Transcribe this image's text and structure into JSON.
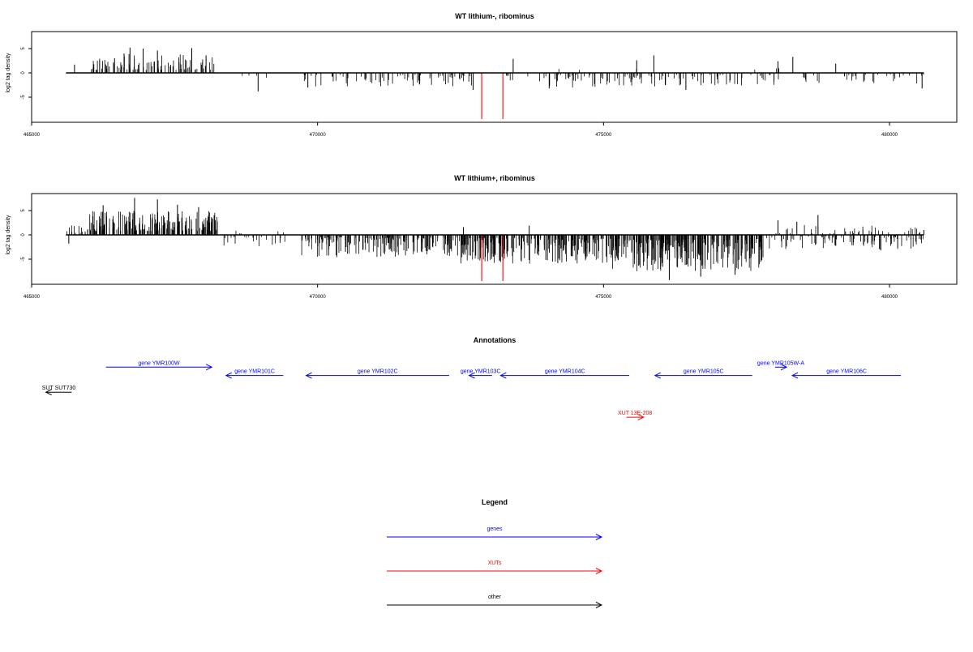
{
  "chart_data": [
    {
      "type": "bar",
      "title": "WT lithium-, ribominus",
      "ylabel": "log2 tag density",
      "xlabel": "",
      "xlim": [
        465000,
        481200
      ],
      "ylim": [
        -10,
        8.5
      ],
      "x_ticks": [
        465000,
        470000,
        475000,
        480000
      ],
      "y_ticks": [
        5,
        0,
        -5
      ],
      "baseline_x": [
        465600,
        480600
      ],
      "highlight_color": "#ff0000",
      "bar_color": "#000000",
      "tall_bars": [
        {
          "x": 465750,
          "y": 1.7
        },
        {
          "x": 466450,
          "y": 3.0
        },
        {
          "x": 466720,
          "y": 5.2
        },
        {
          "x": 466950,
          "y": 5.0
        },
        {
          "x": 467200,
          "y": 4.6
        },
        {
          "x": 467800,
          "y": 5.1
        },
        {
          "x": 468050,
          "y": 3.6
        },
        {
          "x": 468960,
          "y": -3.8
        },
        {
          "x": 469830,
          "y": -3.0
        },
        {
          "x": 472720,
          "y": -3.5
        },
        {
          "x": 473420,
          "y": 2.9
        },
        {
          "x": 474050,
          "y": -3.2
        },
        {
          "x": 475580,
          "y": 2.6
        },
        {
          "x": 475880,
          "y": 3.6
        },
        {
          "x": 476440,
          "y": -3.5
        },
        {
          "x": 478050,
          "y": 2.4
        },
        {
          "x": 478310,
          "y": 3.3
        },
        {
          "x": 479060,
          "y": 1.9
        },
        {
          "x": 480570,
          "y": -3.2
        }
      ],
      "highlight_bars": [
        {
          "x": 472870,
          "y": -9.5
        },
        {
          "x": 473240,
          "y": -9.5
        }
      ],
      "density_regions": [
        {
          "start": 466000,
          "end": 468200,
          "sign": 1,
          "count": 95,
          "min": 0.6,
          "max": 4.0
        },
        {
          "start": 468500,
          "end": 469400,
          "sign": -1,
          "count": 4,
          "min": 0.5,
          "max": 1.5
        },
        {
          "start": 469700,
          "end": 472700,
          "sign": -1,
          "count": 70,
          "min": 0.4,
          "max": 2.8
        },
        {
          "start": 473300,
          "end": 476200,
          "sign": -1,
          "count": 75,
          "min": 0.4,
          "max": 3.0
        },
        {
          "start": 476200,
          "end": 478000,
          "sign": -1,
          "count": 40,
          "min": 0.4,
          "max": 2.6
        },
        {
          "start": 478000,
          "end": 480600,
          "sign": -1,
          "count": 35,
          "min": 0.3,
          "max": 2.2
        },
        {
          "start": 473400,
          "end": 479500,
          "sign": 1,
          "count": 6,
          "min": 0.3,
          "max": 1.0
        }
      ]
    },
    {
      "type": "bar",
      "title": "WT lithium+, ribominus",
      "ylabel": "log2 tag density",
      "xlabel": "",
      "xlim": [
        465000,
        481200
      ],
      "ylim": [
        -10,
        8.5
      ],
      "x_ticks": [
        465000,
        470000,
        475000,
        480000
      ],
      "y_ticks": [
        5,
        0,
        -5
      ],
      "baseline_x": [
        465600,
        480600
      ],
      "highlight_color": "#ff0000",
      "bar_color": "#000000",
      "tall_bars": [
        {
          "x": 466250,
          "y": 6.1
        },
        {
          "x": 466800,
          "y": 7.6
        },
        {
          "x": 467200,
          "y": 7.3
        },
        {
          "x": 467550,
          "y": 6.2
        },
        {
          "x": 467920,
          "y": 5.7
        },
        {
          "x": 472550,
          "y": 1.6
        },
        {
          "x": 473700,
          "y": 1.9
        },
        {
          "x": 474200,
          "y": -5.8
        },
        {
          "x": 476150,
          "y": -9.3
        },
        {
          "x": 476700,
          "y": -8.6
        },
        {
          "x": 477300,
          "y": -8.2
        },
        {
          "x": 478050,
          "y": 3.0
        },
        {
          "x": 478380,
          "y": 2.7
        },
        {
          "x": 478750,
          "y": 4.1
        },
        {
          "x": 480600,
          "y": 1.0
        },
        {
          "x": 465650,
          "y": -1.8
        }
      ],
      "highlight_bars": [
        {
          "x": 472870,
          "y": -9.5
        },
        {
          "x": 473240,
          "y": -9.5
        }
      ],
      "density_regions": [
        {
          "start": 465600,
          "end": 466000,
          "sign": 1,
          "count": 14,
          "min": 0.4,
          "max": 2.2
        },
        {
          "start": 466000,
          "end": 468300,
          "sign": 1,
          "count": 210,
          "min": 0.8,
          "max": 5.0
        },
        {
          "start": 468200,
          "end": 469500,
          "sign": -1,
          "count": 22,
          "min": 0.4,
          "max": 2.4
        },
        {
          "start": 468500,
          "end": 469500,
          "sign": 1,
          "count": 5,
          "min": 0.3,
          "max": 1.0
        },
        {
          "start": 469700,
          "end": 472500,
          "sign": -1,
          "count": 190,
          "min": 0.5,
          "max": 4.6
        },
        {
          "start": 472500,
          "end": 475000,
          "sign": -1,
          "count": 230,
          "min": 0.6,
          "max": 6.0
        },
        {
          "start": 475000,
          "end": 477800,
          "sign": -1,
          "count": 300,
          "min": 0.8,
          "max": 7.5
        },
        {
          "start": 477800,
          "end": 480600,
          "sign": -1,
          "count": 90,
          "min": 0.3,
          "max": 3.2
        },
        {
          "start": 477900,
          "end": 480600,
          "sign": 1,
          "count": 40,
          "min": 0.3,
          "max": 2.2
        }
      ]
    }
  ],
  "annotations": {
    "title": "Annotations",
    "genes_color": "#0000ff",
    "xuts_color": "#ff0000",
    "other_color": "#000000",
    "features": [
      {
        "label": "gene YMR100W",
        "start": 466300,
        "end": 468150,
        "strand": "+",
        "row": 1,
        "kind": "gene"
      },
      {
        "label": "gene YMR101C",
        "start": 468400,
        "end": 469400,
        "strand": "-",
        "row": 2,
        "kind": "gene"
      },
      {
        "label": "gene YMR102C",
        "start": 469800,
        "end": 472300,
        "strand": "-",
        "row": 2,
        "kind": "gene"
      },
      {
        "label": "gene YMR103C",
        "start": 472650,
        "end": 473050,
        "strand": "-",
        "row": 2,
        "kind": "gene"
      },
      {
        "label": "gene YMR104C",
        "start": 473200,
        "end": 475450,
        "strand": "-",
        "row": 2,
        "kind": "gene"
      },
      {
        "label": "gene YMR105C",
        "start": 475900,
        "end": 477600,
        "strand": "-",
        "row": 2,
        "kind": "gene"
      },
      {
        "label": "gene YMR105W-A",
        "start": 478000,
        "end": 478200,
        "strand": "+",
        "row": 1,
        "kind": "gene"
      },
      {
        "label": "gene YMR106C",
        "start": 478300,
        "end": 480200,
        "strand": "-",
        "row": 2,
        "kind": "gene"
      },
      {
        "label": "SUT SUT730",
        "start": 465250,
        "end": 465700,
        "strand": "-",
        "row": 4,
        "kind": "other"
      },
      {
        "label": "XUT 13E-208",
        "start": 475400,
        "end": 475700,
        "strand": "+",
        "row": 7,
        "kind": "xut"
      }
    ]
  },
  "legend": {
    "title": "Legend",
    "items": [
      {
        "label": "genes",
        "color": "#0000ff"
      },
      {
        "label": "XUTs",
        "color": "#ff0000"
      },
      {
        "label": "other",
        "color": "#000000"
      }
    ]
  }
}
